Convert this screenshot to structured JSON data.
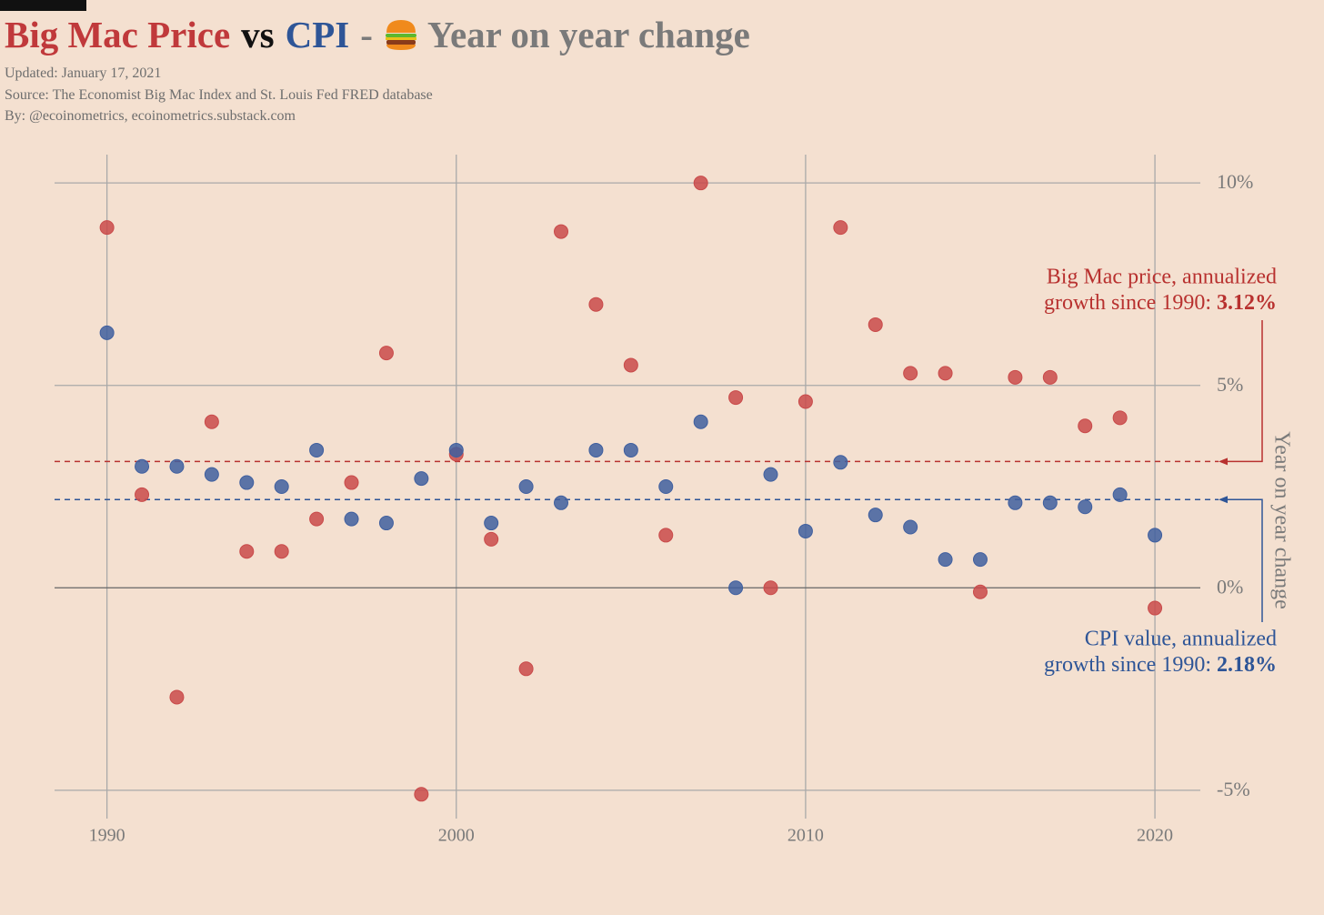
{
  "chart_data": {
    "type": "scatter",
    "title_parts": [
      "vs",
      "-",
      "Year on year change"
    ],
    "subtitle_lines": [
      "Updated: January 17, 2021",
      "Source: The Economist Big Mac Index and St. Louis Fed FRED database",
      "By: @ecoinometrics, ecoinometrics.substack.com"
    ],
    "y_label": "Year on year change",
    "x": [
      1990,
      1991,
      1992,
      1993,
      1994,
      1995,
      1996,
      1997,
      1998,
      1999,
      2000,
      2001,
      2002,
      2003,
      2004,
      2005,
      2006,
      2007,
      2008,
      2009,
      2010,
      2011,
      2012,
      2013,
      2014,
      2015,
      2016,
      2017,
      2018,
      2019,
      2020
    ],
    "series": [
      {
        "name": "Big Mac Price",
        "color": "#c94a4a",
        "values": [
          8.9,
          2.3,
          -2.7,
          4.1,
          0.9,
          0.9,
          1.7,
          2.6,
          5.8,
          -5.1,
          3.3,
          1.2,
          -2.0,
          8.8,
          7.0,
          5.5,
          1.3,
          10.0,
          4.7,
          0.0,
          4.6,
          8.9,
          6.5,
          5.3,
          5.3,
          -0.1,
          5.2,
          5.2,
          4.0,
          4.2,
          -0.5
        ]
      },
      {
        "name": "CPI",
        "color": "#3f5f9f",
        "values": [
          6.3,
          3.0,
          3.0,
          2.8,
          2.6,
          2.5,
          3.4,
          1.7,
          1.6,
          2.7,
          3.4,
          1.6,
          2.5,
          2.1,
          3.4,
          3.4,
          2.5,
          4.1,
          0.0,
          2.8,
          1.4,
          3.1,
          1.8,
          1.5,
          0.7,
          0.7,
          2.1,
          2.1,
          2.0,
          2.3,
          1.3
        ]
      }
    ],
    "reference_lines": [
      {
        "lines": [
          "Big Mac price, annualized",
          "growth since 1990:"
        ],
        "value": 3.12,
        "value_label": "3.12%",
        "color": "#b8312f"
      },
      {
        "lines": [
          "CPI value, annualized",
          "growth since 1990:"
        ],
        "value": 2.18,
        "value_label": "2.18%",
        "color": "#2e5597"
      }
    ],
    "xlim": [
      1988.5,
      2021.3
    ],
    "ylim": [
      -5.7,
      10.7
    ],
    "xticks": [
      1990,
      2000,
      2010,
      2020
    ],
    "yticks": [
      {
        "value": -5,
        "label": "-5%"
      },
      {
        "value": 0,
        "label": "0%"
      },
      {
        "value": 5,
        "label": "5%"
      },
      {
        "value": 10,
        "label": "10%"
      }
    ],
    "grid": true
  }
}
